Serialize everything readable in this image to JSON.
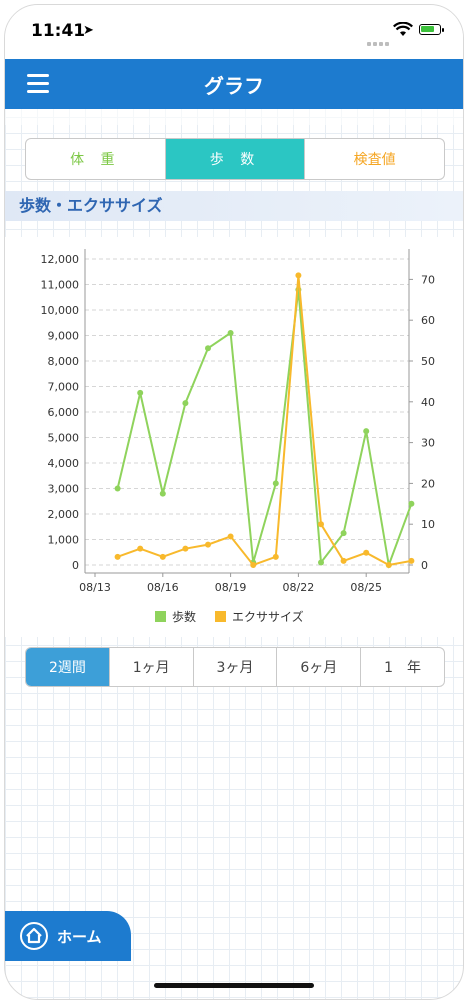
{
  "status_bar": {
    "time": "11:41",
    "location_arrow": "location-arrow-icon"
  },
  "navbar": {
    "title": "グラフ",
    "menu_icon": "hamburger-menu-icon"
  },
  "category_tabs": [
    {
      "label": "体 重",
      "color": "#7dc846",
      "selected": false
    },
    {
      "label": "歩 数",
      "color": "#2bc6c3",
      "selected": true
    },
    {
      "label": "検査値",
      "color": "#f5a623",
      "selected": false
    }
  ],
  "section": {
    "title": "歩数・エクササイズ"
  },
  "chart_data": {
    "type": "line",
    "x_tick_labels": [
      "08/13",
      "08/16",
      "08/19",
      "08/22",
      "08/25"
    ],
    "left_axis": {
      "ylim": [
        0,
        12000
      ],
      "ticks": [
        "0",
        "1,000",
        "2,000",
        "3,000",
        "4,000",
        "5,000",
        "6,000",
        "7,000",
        "8,000",
        "9,000",
        "10,000",
        "11,000",
        "12,000"
      ]
    },
    "right_axis": {
      "ylim": [
        0,
        75
      ],
      "ticks": [
        "0",
        "10",
        "20",
        "30",
        "40",
        "50",
        "60",
        "70"
      ]
    },
    "grid": true,
    "legend_position": "bottom",
    "series": [
      {
        "name": "歩数",
        "axis": "left",
        "color": "#8fd35c",
        "x": [
          "08/14",
          "08/15",
          "08/16",
          "08/17",
          "08/18",
          "08/19",
          "08/20",
          "08/21",
          "08/22",
          "08/23",
          "08/24",
          "08/25",
          "08/26",
          "08/27"
        ],
        "values": [
          3000,
          6750,
          2800,
          6350,
          8500,
          9100,
          100,
          3200,
          10800,
          100,
          1250,
          5250,
          0,
          2400
        ]
      },
      {
        "name": "エクササイズ",
        "axis": "right",
        "color": "#f8b92c",
        "x": [
          "08/14",
          "08/15",
          "08/16",
          "08/17",
          "08/18",
          "08/19",
          "08/20",
          "08/21",
          "08/22",
          "08/23",
          "08/24",
          "08/25",
          "08/26",
          "08/27"
        ],
        "values": [
          2,
          4,
          2,
          4,
          5,
          7,
          0,
          2,
          71,
          10,
          1,
          3,
          0,
          1
        ]
      }
    ]
  },
  "period_tabs": [
    {
      "label": "2週間",
      "selected": true
    },
    {
      "label": "1ヶ月",
      "selected": false
    },
    {
      "label": "3ヶ月",
      "selected": false
    },
    {
      "label": "6ヶ月",
      "selected": false
    },
    {
      "label": "1　年",
      "selected": false
    }
  ],
  "home_button": {
    "label": "ホーム",
    "icon": "home-icon"
  }
}
